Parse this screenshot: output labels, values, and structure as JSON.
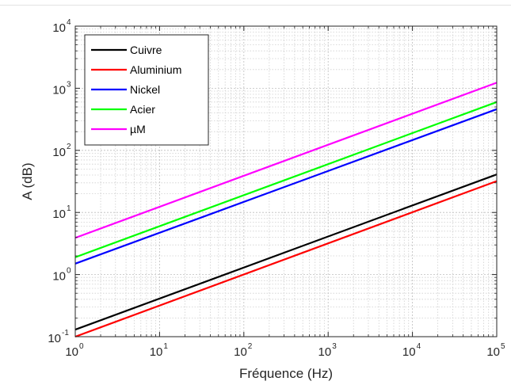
{
  "chart_data": {
    "type": "line",
    "xlabel": "Fréquence (Hz)",
    "ylabel": "A (dB)",
    "x_scale": "log",
    "y_scale": "log",
    "xlim": [
      1,
      100000
    ],
    "ylim": [
      0.1,
      10000
    ],
    "x_ticks": [
      {
        "base": "10",
        "exp": "0",
        "value": 1
      },
      {
        "base": "10",
        "exp": "1",
        "value": 10
      },
      {
        "base": "10",
        "exp": "2",
        "value": 100
      },
      {
        "base": "10",
        "exp": "3",
        "value": 1000
      },
      {
        "base": "10",
        "exp": "4",
        "value": 10000
      },
      {
        "base": "10",
        "exp": "5",
        "value": 100000
      }
    ],
    "y_ticks": [
      {
        "base": "10",
        "exp": "-1",
        "value": 0.1
      },
      {
        "base": "10",
        "exp": "0",
        "value": 1
      },
      {
        "base": "10",
        "exp": "1",
        "value": 10
      },
      {
        "base": "10",
        "exp": "2",
        "value": 100
      },
      {
        "base": "10",
        "exp": "3",
        "value": 1000
      },
      {
        "base": "10",
        "exp": "4",
        "value": 10000
      }
    ],
    "grid": true,
    "minor_grid": true,
    "legend_position": "top-left",
    "series": [
      {
        "name": "Cuivre",
        "color": "#000000",
        "x": [
          1,
          100000
        ],
        "y": [
          0.13,
          41
        ]
      },
      {
        "name": "Aluminium",
        "color": "#ff0000",
        "x": [
          1,
          100000
        ],
        "y": [
          0.1,
          32
        ]
      },
      {
        "name": "Nickel",
        "color": "#0000ff",
        "x": [
          1,
          100000
        ],
        "y": [
          1.5,
          460
        ]
      },
      {
        "name": "Acier",
        "color": "#00ff00",
        "x": [
          1,
          100000
        ],
        "y": [
          1.9,
          600
        ]
      },
      {
        "name": "µM",
        "color": "#ff00ff",
        "x": [
          1,
          100000
        ],
        "y": [
          3.9,
          1230
        ]
      }
    ]
  }
}
